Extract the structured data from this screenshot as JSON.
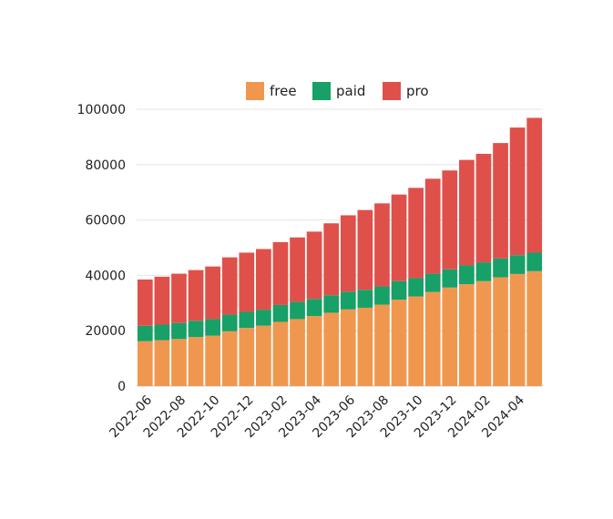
{
  "chart_data": {
    "type": "bar",
    "stacked": true,
    "title": "",
    "xlabel": "",
    "ylabel": "",
    "ylim": [
      0,
      100000
    ],
    "y_ticks": [
      "0",
      "20000",
      "40000",
      "60000",
      "80000",
      "100000"
    ],
    "grid": true,
    "legend_position": "top",
    "categories": [
      "2022-06",
      "2022-07",
      "2022-08",
      "2022-09",
      "2022-10",
      "2022-11",
      "2022-12",
      "2023-01",
      "2023-02",
      "2023-03",
      "2023-04",
      "2023-05",
      "2023-06",
      "2023-07",
      "2023-08",
      "2023-09",
      "2023-10",
      "2023-11",
      "2023-12",
      "2024-01",
      "2024-02",
      "2024-03",
      "2024-04",
      "2024-05"
    ],
    "x_tick_labels": [
      "2022-06",
      "2022-08",
      "2022-10",
      "2022-12",
      "2023-02",
      "2023-04",
      "2023-06",
      "2023-08",
      "2023-10",
      "2023-12",
      "2024-02",
      "2024-04"
    ],
    "series": [
      {
        "name": "free",
        "color": "#f0974f",
        "values": [
          16200,
          16600,
          17000,
          17700,
          18200,
          19800,
          21000,
          21800,
          23200,
          24200,
          25300,
          26500,
          27700,
          28300,
          29400,
          31200,
          32400,
          34000,
          35600,
          36800,
          37900,
          39300,
          40500,
          41500
        ]
      },
      {
        "name": "paid",
        "color": "#17a067",
        "values": [
          5600,
          5600,
          5800,
          5900,
          6000,
          6000,
          5800,
          5800,
          6100,
          6200,
          6200,
          6300,
          6400,
          6500,
          6600,
          6700,
          6600,
          6600,
          6600,
          6800,
          6800,
          6800,
          6800,
          6700
        ]
      },
      {
        "name": "pro",
        "color": "#e0504a",
        "values": [
          16700,
          17300,
          17800,
          18300,
          19000,
          20700,
          21400,
          21900,
          22700,
          23300,
          24300,
          26000,
          27600,
          28800,
          30000,
          31300,
          32600,
          34300,
          35700,
          38100,
          39200,
          41700,
          46100,
          48700
        ]
      }
    ]
  }
}
